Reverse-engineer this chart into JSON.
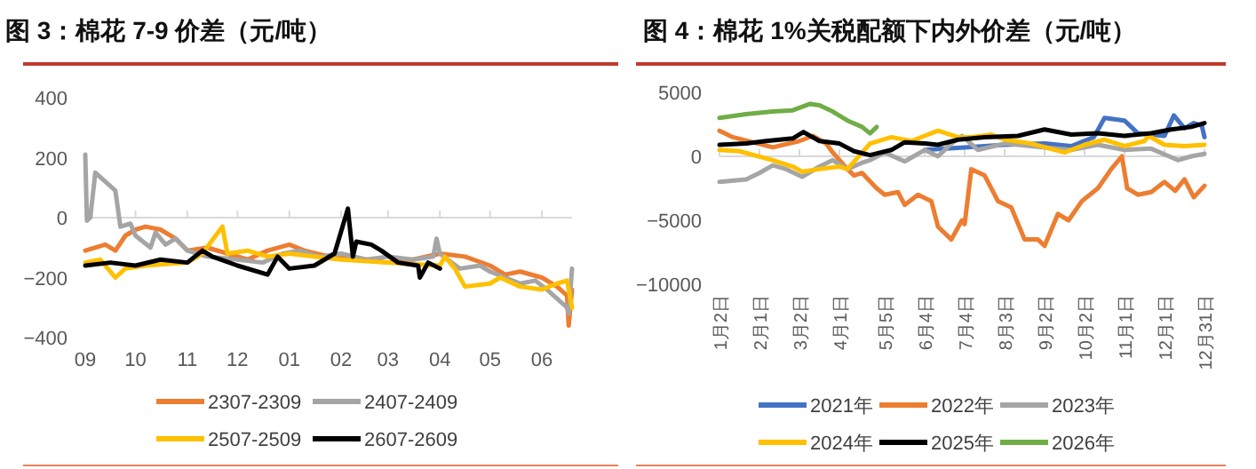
{
  "chart_data": [
    {
      "type": "line",
      "title": "图 3：棉花 7-9 价差（元/吨）",
      "legend": "bottom",
      "xlim": [
        "2025-09-01",
        "2026-06-19"
      ],
      "ylim": [
        -400,
        400
      ],
      "xticks": [
        {
          "value": "2025-09-01",
          "label": "09"
        },
        {
          "value": "2025-10-01",
          "label": "10"
        },
        {
          "value": "2025-11-01",
          "label": "11"
        },
        {
          "value": "2025-12-01",
          "label": "12"
        },
        {
          "value": "2026-01-01",
          "label": "01"
        },
        {
          "value": "2026-02-01",
          "label": "02"
        },
        {
          "value": "2026-03-01",
          "label": "03"
        },
        {
          "value": "2026-04-01",
          "label": "04"
        },
        {
          "value": "2026-05-01",
          "label": "05"
        },
        {
          "value": "2026-06-01",
          "label": "06"
        }
      ],
      "yticks": [
        {
          "value": -400,
          "label": "−400"
        },
        {
          "value": -200,
          "label": "−200"
        },
        0,
        200,
        400
      ],
      "series": [
        {
          "name": "2307-2309",
          "color": "#ed7d31",
          "x": [
            "2025-09-01",
            "2025-09-13",
            "2025-09-19",
            "2025-09-25",
            "2025-10-01",
            "2025-10-07",
            "2025-10-16",
            "2025-10-25",
            "2025-11-01",
            "2025-11-13",
            "2025-11-25",
            "2025-12-07",
            "2025-12-19",
            "2026-01-01",
            "2026-01-10",
            "2026-01-25",
            "2026-02-16",
            "2026-03-01",
            "2026-03-16",
            "2026-04-01",
            "2026-04-16",
            "2026-05-01",
            "2026-05-10",
            "2026-05-19",
            "2026-06-01",
            "2026-06-10",
            "2026-06-16",
            "2026-06-17",
            "2026-06-19"
          ],
          "values": [
            -110,
            -90,
            -110,
            -60,
            -40,
            -30,
            -40,
            -70,
            -110,
            -100,
            -120,
            -140,
            -110,
            -90,
            -110,
            -130,
            -140,
            -150,
            -140,
            -120,
            -130,
            -160,
            -190,
            -180,
            -200,
            -230,
            -260,
            -360,
            -240
          ]
        },
        {
          "name": "2407-2409",
          "color": "#a5a5a5",
          "x": [
            "2025-09-01",
            "2025-09-02",
            "2025-09-04",
            "2025-09-07",
            "2025-09-19",
            "2025-09-22",
            "2025-09-28",
            "2025-10-01",
            "2025-10-10",
            "2025-10-13",
            "2025-10-19",
            "2025-10-25",
            "2025-11-01",
            "2025-11-13",
            "2025-12-01",
            "2025-12-16",
            "2025-12-28",
            "2026-01-07",
            "2026-01-19",
            "2026-02-01",
            "2026-02-16",
            "2026-03-01",
            "2026-03-16",
            "2026-03-28",
            "2026-03-30",
            "2026-04-01",
            "2026-04-13",
            "2026-04-25",
            "2026-05-01",
            "2026-05-10",
            "2026-05-19",
            "2026-05-28",
            "2026-06-04",
            "2026-06-10",
            "2026-06-16",
            "2026-06-17",
            "2026-06-19"
          ],
          "values": [
            210,
            -10,
            0,
            150,
            90,
            -30,
            -20,
            -60,
            -100,
            -50,
            -90,
            -70,
            -110,
            -130,
            -140,
            -150,
            -120,
            -110,
            -130,
            -120,
            -140,
            -130,
            -140,
            -130,
            -70,
            -120,
            -170,
            -160,
            -180,
            -200,
            -220,
            -210,
            -240,
            -270,
            -300,
            -320,
            -170
          ]
        },
        {
          "name": "2507-2509",
          "color": "#ffc000",
          "x": [
            "2025-09-01",
            "2025-09-10",
            "2025-09-19",
            "2025-09-25",
            "2025-10-07",
            "2025-11-01",
            "2025-11-10",
            "2025-11-22",
            "2025-11-25",
            "2025-12-07",
            "2025-12-19",
            "2026-01-01",
            "2026-01-16",
            "2026-02-01",
            "2026-03-01",
            "2026-04-01",
            "2026-04-04",
            "2026-04-10",
            "2026-04-16",
            "2026-05-01",
            "2026-05-07",
            "2026-05-19",
            "2026-06-01",
            "2026-06-10",
            "2026-06-16",
            "2026-06-19"
          ],
          "values": [
            -150,
            -140,
            -200,
            -170,
            -160,
            -150,
            -120,
            -30,
            -120,
            -110,
            -130,
            -120,
            -130,
            -140,
            -150,
            -160,
            -130,
            -170,
            -230,
            -220,
            -200,
            -230,
            -240,
            -220,
            -210,
            -300
          ]
        },
        {
          "name": "2607-2609",
          "color": "#000000",
          "x": [
            "2025-09-01",
            "2025-09-16",
            "2025-10-01",
            "2025-10-16",
            "2025-11-01",
            "2025-11-10",
            "2025-11-16",
            "2025-12-01",
            "2025-12-19",
            "2025-12-25",
            "2026-01-01",
            "2026-01-16",
            "2026-01-28",
            "2026-02-05",
            "2026-02-08",
            "2026-02-10",
            "2026-02-19",
            "2026-02-25",
            "2026-03-07",
            "2026-03-19",
            "2026-03-20",
            "2026-03-25",
            "2026-04-01"
          ],
          "values": [
            -160,
            -150,
            -160,
            -140,
            -150,
            -110,
            -130,
            -160,
            -190,
            -130,
            -170,
            -160,
            -120,
            30,
            -130,
            -80,
            -90,
            -110,
            -150,
            -160,
            -200,
            -150,
            -170
          ]
        }
      ]
    },
    {
      "type": "line",
      "title": "图 4：棉花 1%关税配额下内外价差（元/吨）",
      "legend": "bottom",
      "xlim": [
        "--01-02",
        "--12-31"
      ],
      "ylim": [
        -10000,
        5000
      ],
      "xticks": [
        {
          "value": "--01-02",
          "label": "1月2日"
        },
        {
          "value": "--02-01",
          "label": "2月1日"
        },
        {
          "value": "--03-02",
          "label": "3月2日"
        },
        {
          "value": "--04-01",
          "label": "4月1日"
        },
        {
          "value": "--05-05",
          "label": "5月5日"
        },
        {
          "value": "--06-04",
          "label": "6月4日"
        },
        {
          "value": "--07-04",
          "label": "7月4日"
        },
        {
          "value": "--08-03",
          "label": "8月3日"
        },
        {
          "value": "--09-02",
          "label": "9月2日"
        },
        {
          "value": "--10-02",
          "label": "10月2日"
        },
        {
          "value": "--11-01",
          "label": "11月1日"
        },
        {
          "value": "--12-01",
          "label": "12月1日"
        },
        {
          "value": "--12-31",
          "label": "12月31日"
        }
      ],
      "yticks": [
        {
          "value": -10000,
          "label": "−10000"
        },
        {
          "value": -5000,
          "label": "−5000"
        },
        0,
        5000
      ],
      "series": [
        {
          "name": "2021年",
          "color": "#4472c4",
          "x": [
            "--06-04",
            "--07-04",
            "--08-03",
            "--09-02",
            "--09-22",
            "--10-09",
            "--10-17",
            "--11-01",
            "--11-11",
            "--12-01",
            "--12-08",
            "--12-16",
            "--12-23",
            "--12-29",
            "--12-31"
          ],
          "values": [
            500,
            700,
            900,
            1000,
            800,
            1500,
            3000,
            2800,
            1800,
            1600,
            3200,
            2200,
            2600,
            2400,
            1500
          ]
        },
        {
          "name": "2022年",
          "color": "#ed7d31",
          "x": [
            "--01-02",
            "--01-12",
            "--02-11",
            "--03-02",
            "--03-12",
            "--03-22",
            "--03-27",
            "--04-07",
            "--04-12",
            "--04-18",
            "--04-29",
            "--05-05",
            "--05-15",
            "--05-20",
            "--05-30",
            "--06-09",
            "--06-14",
            "--06-24",
            "--07-02",
            "--07-04",
            "--07-09",
            "--07-19",
            "--07-29",
            "--08-08",
            "--08-18",
            "--08-28",
            "--09-02",
            "--09-12",
            "--09-20",
            "--09-30",
            "--10-12",
            "--10-22",
            "--10-30",
            "--11-03",
            "--11-11",
            "--11-21",
            "--12-01",
            "--12-09",
            "--12-16",
            "--12-23",
            "--12-31"
          ],
          "values": [
            2000,
            1500,
            700,
            1200,
            1600,
            1000,
            300,
            -1000,
            -1500,
            -1300,
            -2500,
            -3000,
            -2800,
            -3800,
            -3000,
            -3500,
            -5500,
            -6500,
            -5000,
            -5300,
            -1000,
            -1500,
            -3500,
            -4000,
            -6500,
            -6500,
            -7000,
            -4500,
            -5000,
            -3500,
            -2500,
            -1000,
            0,
            -2500,
            -3000,
            -2800,
            -2000,
            -2700,
            -1800,
            -3200,
            -2300
          ]
        },
        {
          "name": "2023年",
          "color": "#a5a5a5",
          "x": [
            "--01-02",
            "--01-22",
            "--02-01",
            "--02-11",
            "--02-21",
            "--03-04",
            "--03-17",
            "--03-27",
            "--04-07",
            "--04-18",
            "--04-24",
            "--05-05",
            "--05-20",
            "--06-04",
            "--06-14",
            "--06-24",
            "--07-02",
            "--07-14",
            "--08-03",
            "--09-02",
            "--09-22",
            "--10-12",
            "--11-01",
            "--11-21",
            "--12-11",
            "--12-21",
            "--12-31"
          ],
          "values": [
            -2000,
            -1800,
            -1300,
            -700,
            -1000,
            -1600,
            -800,
            -300,
            -1000,
            -500,
            -300,
            300,
            -400,
            500,
            0,
            1000,
            1600,
            500,
            1000,
            700,
            500,
            900,
            500,
            600,
            -300,
            0,
            200
          ]
        },
        {
          "name": "2024年",
          "color": "#ffc000",
          "x": [
            "--01-02",
            "--01-17",
            "--02-11",
            "--02-26",
            "--03-04",
            "--03-17",
            "--04-01",
            "--04-07",
            "--04-24",
            "--05-10",
            "--05-25",
            "--06-14",
            "--06-29",
            "--07-09",
            "--07-24",
            "--08-03",
            "--08-23",
            "--09-17",
            "--10-02",
            "--10-17",
            "--11-01",
            "--11-16",
            "--11-19",
            "--12-01",
            "--12-16",
            "--12-31"
          ],
          "values": [
            500,
            400,
            -300,
            -800,
            -1200,
            -1000,
            -800,
            -1000,
            1000,
            1500,
            1200,
            2000,
            1500,
            1500,
            1700,
            1300,
            1000,
            300,
            900,
            1300,
            800,
            1200,
            1600,
            900,
            800,
            900
          ]
        },
        {
          "name": "2025年",
          "color": "#000000",
          "x": [
            "--01-02",
            "--01-22",
            "--02-06",
            "--02-26",
            "--03-05",
            "--03-17",
            "--04-01",
            "--04-12",
            "--04-24",
            "--05-10",
            "--05-20",
            "--06-04",
            "--06-14",
            "--06-29",
            "--07-19",
            "--08-13",
            "--09-02",
            "--09-22",
            "--10-12",
            "--11-01",
            "--11-21",
            "--12-06",
            "--12-21",
            "--12-31"
          ],
          "values": [
            900,
            1000,
            1200,
            1400,
            1900,
            1200,
            1000,
            400,
            100,
            500,
            1100,
            1000,
            900,
            1300,
            1500,
            1600,
            2100,
            1700,
            1800,
            1600,
            1800,
            2100,
            2300,
            2600
          ]
        },
        {
          "name": "2026年",
          "color": "#70ad47",
          "x": [
            "--01-02",
            "--01-22",
            "--02-11",
            "--02-26",
            "--03-10",
            "--03-17",
            "--03-27",
            "--04-07",
            "--04-18",
            "--04-24",
            "--04-29"
          ],
          "values": [
            3000,
            3300,
            3500,
            3600,
            4100,
            4000,
            3500,
            2800,
            2300,
            1800,
            2300
          ]
        }
      ]
    }
  ]
}
